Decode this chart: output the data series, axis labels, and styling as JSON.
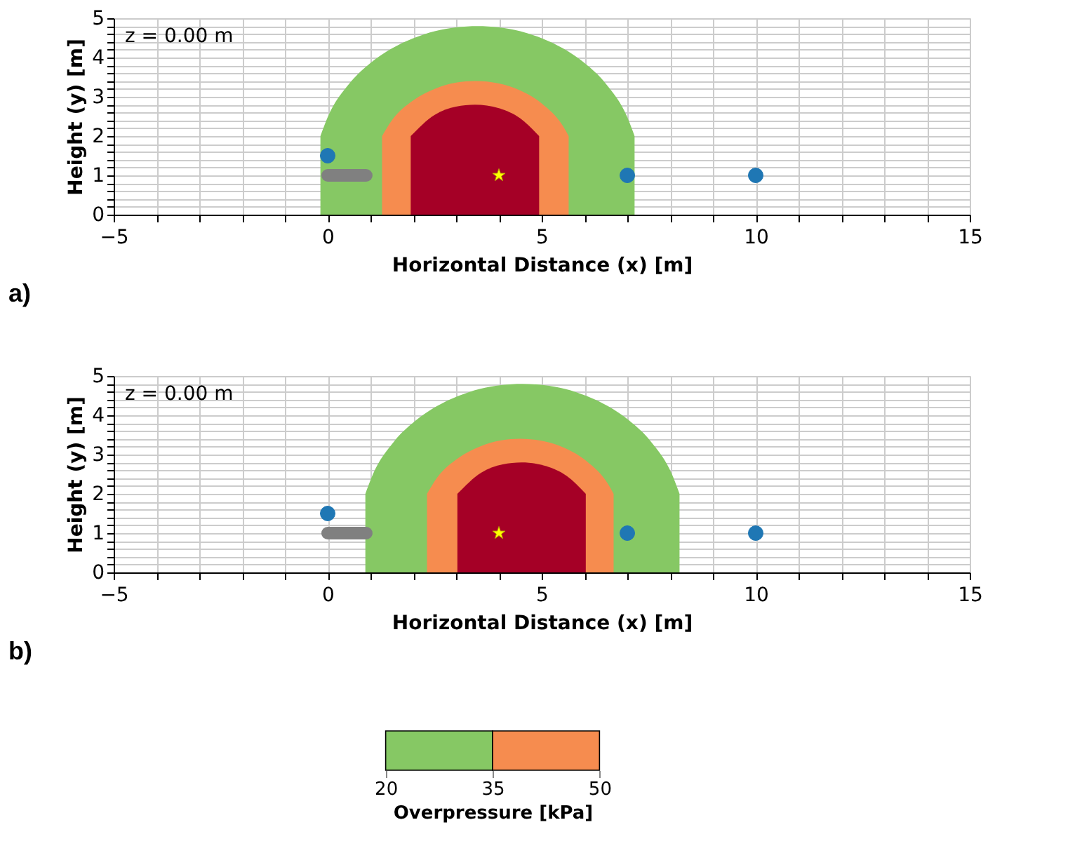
{
  "chart_data": [
    {
      "type": "area",
      "xlabel": "Horizontal Distance (x) [m]",
      "ylabel": "Height (y) [m]",
      "annotations": [
        "z = 0.00 m",
        "a)"
      ],
      "xlim": [
        -5,
        15
      ],
      "ylim": [
        0,
        5
      ],
      "xticks": [
        {
          "value": -5,
          "label": "−5"
        },
        {
          "value": -4,
          "label": null
        },
        {
          "value": -3,
          "label": null
        },
        {
          "value": -2,
          "label": null
        },
        {
          "value": -1,
          "label": null
        },
        0,
        {
          "value": 1,
          "label": null
        },
        {
          "value": 2,
          "label": null
        },
        {
          "value": 3,
          "label": null
        },
        {
          "value": 4,
          "label": null
        },
        5,
        {
          "value": 6,
          "label": null
        },
        {
          "value": 7,
          "label": null
        },
        {
          "value": 8,
          "label": null
        },
        {
          "value": 9,
          "label": null
        },
        10,
        {
          "value": 11,
          "label": null
        },
        {
          "value": 12,
          "label": null
        },
        {
          "value": 13,
          "label": null
        },
        {
          "value": 14,
          "label": null
        },
        15
      ],
      "yticks": [
        0,
        {
          "value": 0.2,
          "label": null
        },
        {
          "value": 0.4,
          "label": null
        },
        {
          "value": 0.6,
          "label": null
        },
        {
          "value": 0.8,
          "label": null
        },
        1,
        {
          "value": 1.2,
          "label": null
        },
        {
          "value": 1.4,
          "label": null
        },
        {
          "value": 1.6,
          "label": null
        },
        {
          "value": 1.8,
          "label": null
        },
        2,
        {
          "value": 2.2,
          "label": null
        },
        {
          "value": 2.4,
          "label": null
        },
        {
          "value": 2.6,
          "label": null
        },
        {
          "value": 2.8,
          "label": null
        },
        3,
        {
          "value": 3.2,
          "label": null
        },
        {
          "value": 3.4,
          "label": null
        },
        {
          "value": 3.6,
          "label": null
        },
        {
          "value": 3.8,
          "label": null
        },
        4,
        {
          "value": 4.2,
          "label": null
        },
        {
          "value": 4.4,
          "label": null
        },
        {
          "value": 4.6,
          "label": null
        },
        {
          "value": 4.8,
          "label": null
        },
        5
      ],
      "grid": true,
      "series": [
        {
          "type": "area",
          "color": "#86c864",
          "x": [
            -0.17,
            0,
            0.5,
            1,
            1.5,
            2,
            2.5,
            3,
            3.5,
            4,
            4.5,
            5,
            5.5,
            6,
            6.5,
            7,
            7.17
          ],
          "values": [
            2.0,
            2.48,
            3.33,
            3.86,
            4.23,
            4.49,
            4.67,
            4.77,
            4.8,
            4.77,
            4.67,
            4.49,
            4.23,
            3.86,
            3.33,
            2.48,
            2.0
          ]
        },
        {
          "type": "area",
          "color": "#f68c4f",
          "x": [
            1.27,
            1.5,
            2,
            2.5,
            3,
            3.45,
            4,
            4.5,
            5,
            5.5,
            5.63
          ],
          "values": [
            2.0,
            2.4,
            2.91,
            3.2,
            3.36,
            3.4,
            3.34,
            3.16,
            2.83,
            2.25,
            2.0
          ]
        },
        {
          "type": "area",
          "color": "#a50026",
          "x": [
            1.94,
            2.5,
            3,
            3.44,
            4,
            4.5,
            4.94
          ],
          "values": [
            2.0,
            2.54,
            2.75,
            2.8,
            2.71,
            2.45,
            2.0
          ]
        },
        {
          "type": "line",
          "color": "#808080",
          "x": [
            0,
            0.9
          ],
          "values": [
            1,
            1
          ]
        },
        {
          "type": "scatter",
          "color": "#1f77b4",
          "marker": "circle",
          "x": [
            0,
            7,
            10
          ],
          "values": [
            1.5,
            1,
            1
          ]
        },
        {
          "type": "scatter",
          "color": "#ffff00",
          "marker": "star",
          "x": [
            4
          ],
          "values": [
            1
          ]
        }
      ]
    },
    {
      "type": "area",
      "xlabel": "Horizontal Distance (x) [m]",
      "ylabel": "Height (y) [m]",
      "annotations": [
        "z = 0.00 m",
        "b)"
      ],
      "xlim": [
        -5,
        15
      ],
      "ylim": [
        0,
        5
      ],
      "xticks": [
        {
          "value": -5,
          "label": "−5"
        },
        {
          "value": -4,
          "label": null
        },
        {
          "value": -3,
          "label": null
        },
        {
          "value": -2,
          "label": null
        },
        {
          "value": -1,
          "label": null
        },
        0,
        {
          "value": 1,
          "label": null
        },
        {
          "value": 2,
          "label": null
        },
        {
          "value": 3,
          "label": null
        },
        {
          "value": 4,
          "label": null
        },
        5,
        {
          "value": 6,
          "label": null
        },
        {
          "value": 7,
          "label": null
        },
        {
          "value": 8,
          "label": null
        },
        {
          "value": 9,
          "label": null
        },
        10,
        {
          "value": 11,
          "label": null
        },
        {
          "value": 12,
          "label": null
        },
        {
          "value": 13,
          "label": null
        },
        {
          "value": 14,
          "label": null
        },
        15
      ],
      "yticks": [
        0,
        {
          "value": 0.2,
          "label": null
        },
        {
          "value": 0.4,
          "label": null
        },
        {
          "value": 0.6,
          "label": null
        },
        {
          "value": 0.8,
          "label": null
        },
        1,
        {
          "value": 1.2,
          "label": null
        },
        {
          "value": 1.4,
          "label": null
        },
        {
          "value": 1.6,
          "label": null
        },
        {
          "value": 1.8,
          "label": null
        },
        2,
        {
          "value": 2.2,
          "label": null
        },
        {
          "value": 2.4,
          "label": null
        },
        {
          "value": 2.6,
          "label": null
        },
        {
          "value": 2.8,
          "label": null
        },
        3,
        {
          "value": 3.2,
          "label": null
        },
        {
          "value": 3.4,
          "label": null
        },
        {
          "value": 3.6,
          "label": null
        },
        {
          "value": 3.8,
          "label": null
        },
        4,
        {
          "value": 4.2,
          "label": null
        },
        {
          "value": 4.4,
          "label": null
        },
        {
          "value": 4.6,
          "label": null
        },
        {
          "value": 4.8,
          "label": null
        },
        5
      ],
      "grid": true,
      "clabel": "Overpressure [kPa]",
      "clim": [
        20,
        50
      ],
      "cticks": [
        20,
        35,
        50
      ],
      "series": [
        {
          "type": "area",
          "color": "#86c864",
          "x": [
            0.88,
            1.05,
            1.55,
            2.05,
            2.55,
            3.05,
            3.55,
            4.05,
            4.55,
            5.05,
            5.55,
            6.05,
            6.55,
            7.05,
            7.55,
            8.05,
            8.22
          ],
          "values": [
            2.0,
            2.48,
            3.33,
            3.86,
            4.23,
            4.49,
            4.67,
            4.77,
            4.8,
            4.77,
            4.67,
            4.49,
            4.23,
            3.86,
            3.33,
            2.48,
            2.0
          ]
        },
        {
          "type": "area",
          "color": "#f68c4f",
          "x": [
            2.32,
            2.55,
            3.05,
            3.55,
            4.05,
            4.5,
            5.05,
            5.55,
            6.05,
            6.55,
            6.68
          ],
          "values": [
            2.0,
            2.4,
            2.91,
            3.2,
            3.36,
            3.4,
            3.34,
            3.16,
            2.83,
            2.25,
            2.0
          ]
        },
        {
          "type": "area",
          "color": "#a50026",
          "x": [
            3.03,
            3.59,
            4.09,
            4.53,
            5.09,
            5.59,
            6.03
          ],
          "values": [
            2.0,
            2.54,
            2.75,
            2.8,
            2.71,
            2.45,
            2.0
          ]
        },
        {
          "type": "line",
          "color": "#808080",
          "x": [
            0,
            0.9
          ],
          "values": [
            1,
            1
          ]
        },
        {
          "type": "scatter",
          "color": "#1f77b4",
          "marker": "circle",
          "x": [
            0,
            7,
            10
          ],
          "values": [
            1.5,
            1,
            1
          ]
        },
        {
          "type": "scatter",
          "color": "#ffff00",
          "marker": "star",
          "x": [
            4
          ],
          "values": [
            1
          ]
        }
      ]
    }
  ]
}
